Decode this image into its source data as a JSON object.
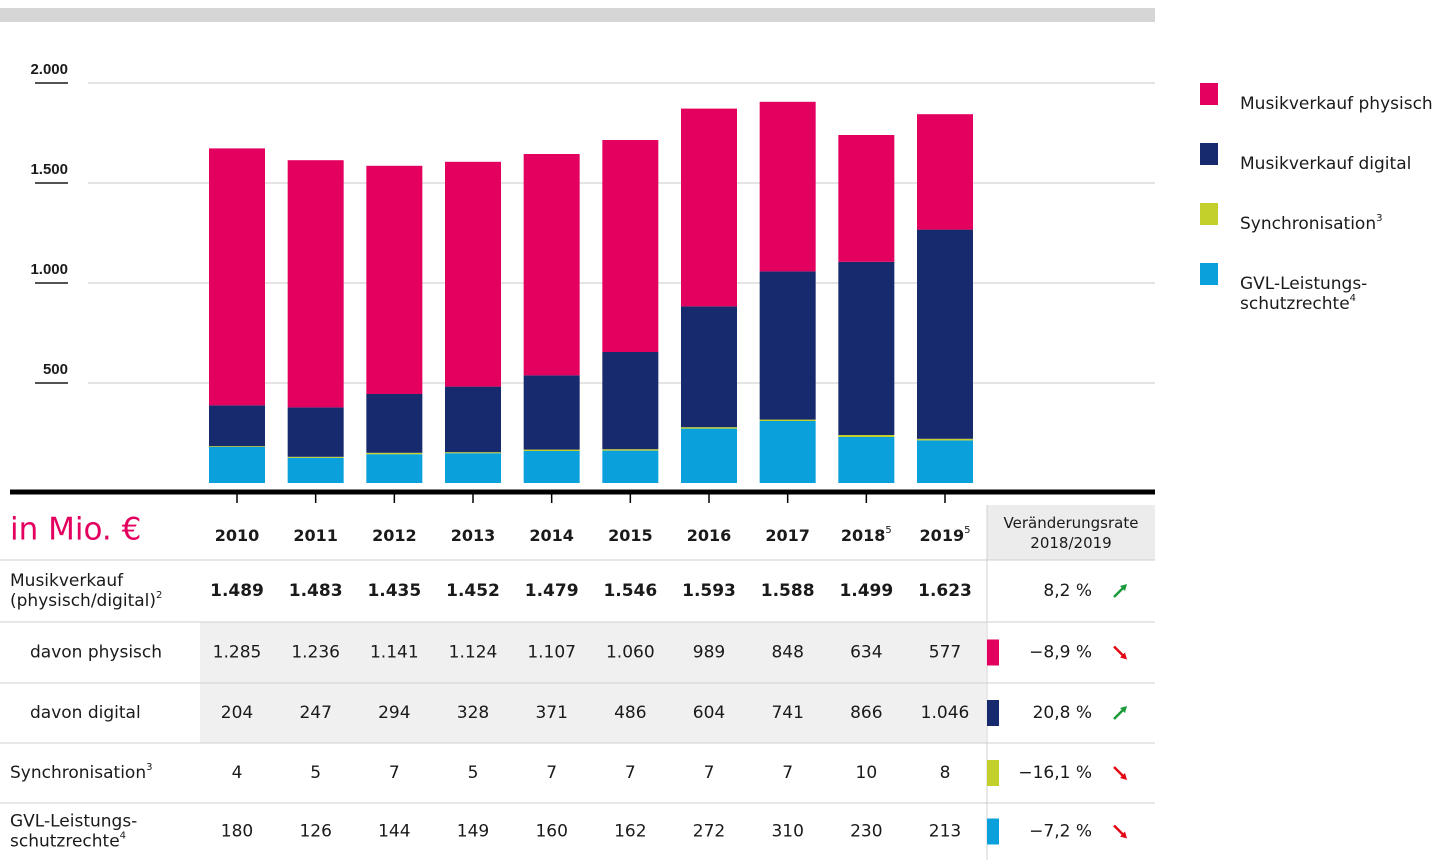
{
  "chart_data": {
    "type": "bar",
    "stacked": true,
    "table_header": "in Mio. €",
    "change_header_lines": [
      "Veränderungsrate",
      "2018/2019"
    ],
    "categories": [
      "2010",
      "2011",
      "2012",
      "2013",
      "2014",
      "2015",
      "2016",
      "2017",
      "2018",
      "2019"
    ],
    "category_notes": [
      null,
      null,
      null,
      null,
      null,
      null,
      null,
      null,
      "5",
      "5"
    ],
    "ylim": [
      0,
      2000
    ],
    "yticks": [
      {
        "value": 500,
        "label": "500"
      },
      {
        "value": 1000,
        "label": "1.000"
      },
      {
        "value": 1500,
        "label": "1.500"
      },
      {
        "value": 2000,
        "label": "2.000"
      }
    ],
    "grid": true,
    "legend": "right",
    "summary_row": {
      "label_lines": [
        "Musikverkauf",
        "(physisch/digital)"
      ],
      "note": "2",
      "value_labels": [
        "1.489",
        "1.483",
        "1.435",
        "1.452",
        "1.479",
        "1.546",
        "1.593",
        "1.588",
        "1.499",
        "1.623"
      ],
      "change": "8,2 %",
      "trend": "up"
    },
    "series": [
      {
        "name_lines": [
          "Musikverkauf physisch"
        ],
        "table_label_lines": [
          "davon physisch"
        ],
        "indent": true,
        "note": null,
        "color": "#e4005f",
        "values": [
          1285,
          1236,
          1141,
          1124,
          1107,
          1060,
          989,
          848,
          634,
          577
        ],
        "value_labels": [
          "1.285",
          "1.236",
          "1.141",
          "1.124",
          "1.107",
          "1.060",
          "989",
          "848",
          "634",
          "577"
        ],
        "change": "−8,9 %",
        "trend": "down"
      },
      {
        "name_lines": [
          "Musikverkauf digital"
        ],
        "table_label_lines": [
          "davon digital"
        ],
        "indent": true,
        "note": null,
        "color": "#172a6e",
        "values": [
          204,
          247,
          294,
          328,
          371,
          486,
          604,
          741,
          866,
          1046
        ],
        "value_labels": [
          "204",
          "247",
          "294",
          "328",
          "371",
          "486",
          "604",
          "741",
          "866",
          "1.046"
        ],
        "change": "20,8 %",
        "trend": "up"
      },
      {
        "name_lines": [
          "Synchronisation"
        ],
        "table_label_lines": [
          "Synchronisation"
        ],
        "indent": false,
        "note": "3",
        "color": "#c3cf2b",
        "values": [
          4,
          5,
          7,
          5,
          7,
          7,
          7,
          7,
          10,
          8
        ],
        "value_labels": [
          "4",
          "5",
          "7",
          "5",
          "7",
          "7",
          "7",
          "7",
          "10",
          "8"
        ],
        "change": "−16,1 %",
        "trend": "down"
      },
      {
        "name_lines": [
          "GVL-Leistungs-",
          "schutzrechte"
        ],
        "table_label_lines": [
          "GVL-Leistungs-",
          "schutzrechte"
        ],
        "indent": false,
        "note": "4",
        "color": "#0aa0dc",
        "values": [
          180,
          126,
          144,
          149,
          160,
          162,
          272,
          310,
          230,
          213
        ],
        "value_labels": [
          "180",
          "126",
          "144",
          "149",
          "160",
          "162",
          "272",
          "310",
          "230",
          "213"
        ],
        "change": "−7,2 %",
        "trend": "down"
      }
    ]
  }
}
